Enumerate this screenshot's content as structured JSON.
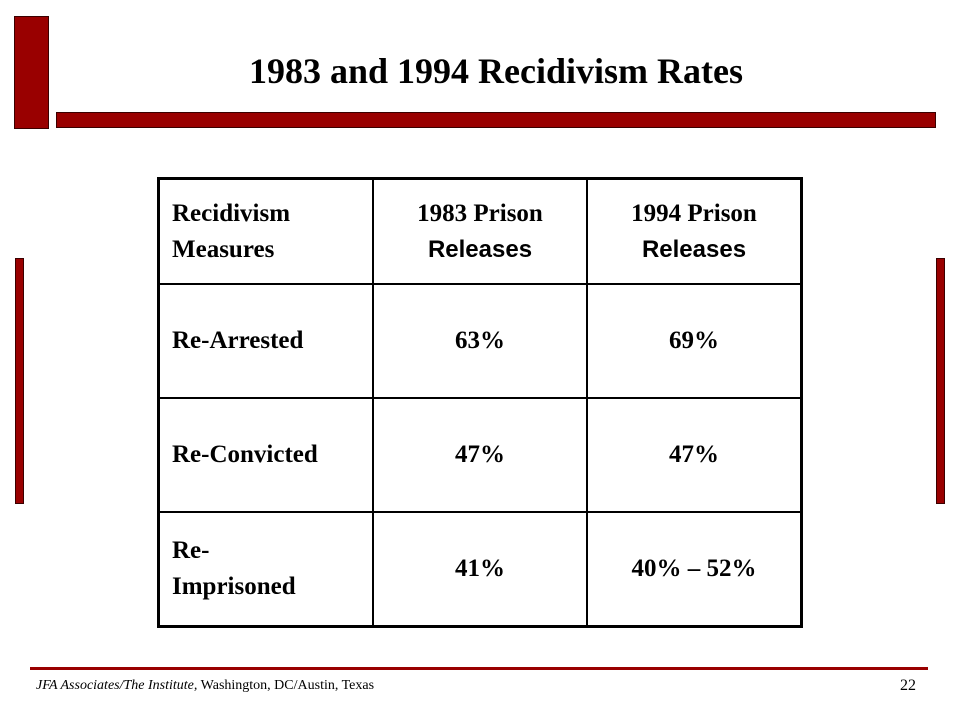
{
  "slide": {
    "title": "1983 and 1994 Recidivism Rates",
    "page_number": "22",
    "accent_color": "#990000"
  },
  "table": {
    "header": {
      "col0_line1": "Recidivism",
      "col0_line2": "Measures",
      "col1_year": "1983 Prison",
      "col1_rest": "Releases",
      "col2_year": "1994 Prison",
      "col2_rest": "Releases"
    },
    "rows": [
      {
        "measure": "Re-Arrested",
        "v1983": "63%",
        "v1994": "69%"
      },
      {
        "measure": "Re-Convicted",
        "v1983": "47%",
        "v1994": "47%"
      },
      {
        "measure": "Re-Imprisoned",
        "measure_line1": "Re-",
        "measure_line2": "Imprisoned",
        "v1983": "41%",
        "v1994": "40% – 52%"
      }
    ]
  },
  "footer": {
    "org_italic": "JFA Associates/The Institute,",
    "locations": " Washington, DC/Austin, Texas"
  }
}
